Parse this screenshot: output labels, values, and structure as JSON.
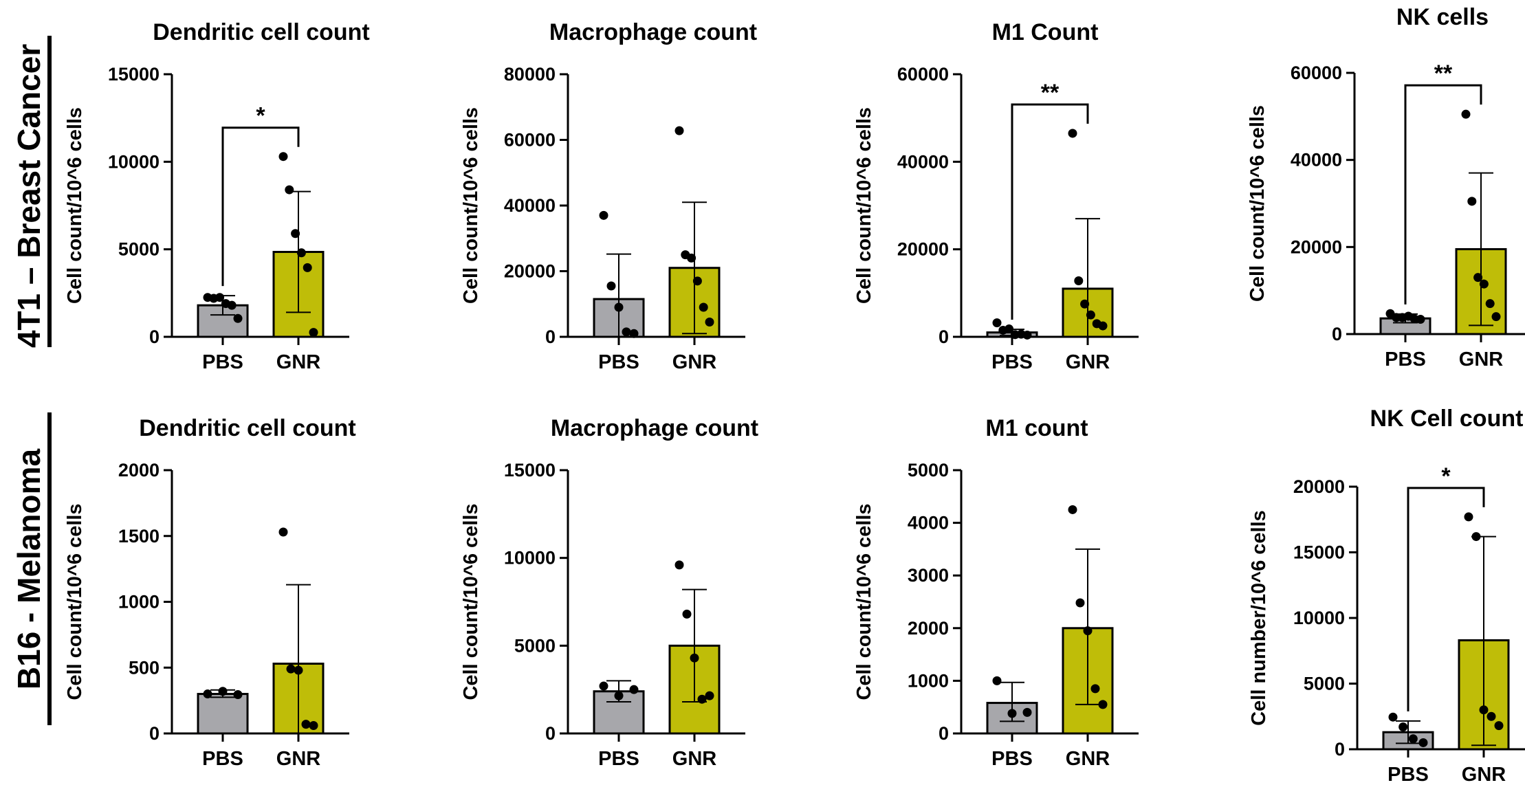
{
  "colors": {
    "pbs_bar": "#a7a7ab",
    "gnr_bar": "#bfbd08",
    "axis": "#000000",
    "points": "#000000"
  },
  "row_labels": [
    "4T1 – Breast Cancer",
    "B16 - Melanoma"
  ],
  "chart_data": [
    {
      "type": "bar",
      "title": "Dendritic cell count",
      "xlabel": "",
      "ylabel": "Cell count/10^6 cells",
      "ylim": [
        0,
        15000
      ],
      "yticks": [
        "0",
        "5000",
        "10000",
        "15000"
      ],
      "categories": [
        "PBS",
        "GNR"
      ],
      "values": [
        1800,
        4850
      ],
      "error": [
        [
          1250,
          2350
        ],
        [
          1400,
          8300
        ]
      ],
      "points": [
        [
          2250,
          2200,
          2250,
          1900,
          1800,
          1050
        ],
        [
          10300,
          8400,
          5900,
          4800,
          3950,
          250
        ]
      ],
      "significance": "*"
    },
    {
      "type": "bar",
      "title": "Macrophage count",
      "xlabel": "",
      "ylabel": "Cell count/10^6 cells",
      "ylim": [
        0,
        80000
      ],
      "yticks": [
        "0",
        "20000",
        "40000",
        "60000",
        "80000"
      ],
      "categories": [
        "PBS",
        "GNR"
      ],
      "values": [
        11500,
        21000
      ],
      "error": [
        [
          0,
          25200
        ],
        [
          1000,
          41000
        ]
      ],
      "points": [
        [
          37000,
          15500,
          9000,
          1500,
          1000
        ],
        [
          62800,
          25000,
          24000,
          17000,
          9000,
          4500
        ]
      ],
      "significance": ""
    },
    {
      "type": "bar",
      "title": "M1 Count",
      "xlabel": "",
      "ylabel": "Cell count/10^6 cells",
      "ylim": [
        0,
        60000
      ],
      "yticks": [
        "0",
        "20000",
        "40000",
        "60000"
      ],
      "categories": [
        "PBS",
        "GNR"
      ],
      "values": [
        1000,
        11000
      ],
      "error": [
        [
          300,
          1700
        ],
        [
          0,
          27000
        ]
      ],
      "points": [
        [
          3200,
          1500,
          1800,
          500,
          600,
          400
        ],
        [
          46500,
          12800,
          7500,
          5000,
          3000,
          2500
        ]
      ],
      "significance": "**"
    },
    {
      "type": "bar",
      "title": "NK cells",
      "xlabel": "",
      "ylabel": "Cell count/10^6 cells",
      "ylim": [
        0,
        60000
      ],
      "yticks": [
        "0",
        "20000",
        "40000",
        "60000"
      ],
      "categories": [
        "PBS",
        "GNR"
      ],
      "values": [
        3600,
        19500
      ],
      "error": [
        [
          2600,
          4600
        ],
        [
          2000,
          37000
        ]
      ],
      "points": [
        [
          4700,
          3800,
          3800,
          4100,
          3500,
          3400
        ],
        [
          50500,
          30500,
          13000,
          11500,
          7000,
          4000
        ]
      ],
      "significance": "**"
    },
    {
      "type": "bar",
      "title": "Dendritic cell count",
      "xlabel": "",
      "ylabel": "Cell count/10^6 cells",
      "ylim": [
        0,
        2000
      ],
      "yticks": [
        "0",
        "500",
        "1000",
        "1500",
        "2000"
      ],
      "categories": [
        "PBS",
        "GNR"
      ],
      "values": [
        300,
        530
      ],
      "error": [
        [
          275,
          330
        ],
        [
          0,
          1130
        ]
      ],
      "points": [
        [
          300,
          320,
          295
        ],
        [
          1530,
          490,
          480,
          70,
          60
        ]
      ],
      "significance": ""
    },
    {
      "type": "bar",
      "title": "Macrophage count",
      "xlabel": "",
      "ylabel": "Cell count/10^6 cells",
      "ylim": [
        0,
        15000
      ],
      "yticks": [
        "0",
        "5000",
        "10000",
        "15000"
      ],
      "categories": [
        "PBS",
        "GNR"
      ],
      "values": [
        2400,
        5000
      ],
      "error": [
        [
          1800,
          3000
        ],
        [
          1800,
          8200
        ]
      ],
      "points": [
        [
          2700,
          2150,
          2500
        ],
        [
          9600,
          6800,
          4300,
          1950,
          2150
        ]
      ],
      "significance": ""
    },
    {
      "type": "bar",
      "title": "M1 count",
      "xlabel": "",
      "ylabel": "Cell count/10^6 cells",
      "ylim": [
        0,
        5000
      ],
      "yticks": [
        "0",
        "1000",
        "2000",
        "3000",
        "4000",
        "5000"
      ],
      "categories": [
        "PBS",
        "GNR"
      ],
      "values": [
        580,
        2000
      ],
      "error": [
        [
          230,
          970
        ],
        [
          550,
          3500
        ]
      ],
      "points": [
        [
          1000,
          380,
          400
        ],
        [
          4250,
          2480,
          1950,
          850,
          550
        ]
      ],
      "significance": ""
    },
    {
      "type": "bar",
      "title": "NK Cell count",
      "xlabel": "",
      "ylabel": "Cell number/10^6 cells",
      "ylim": [
        0,
        20000
      ],
      "yticks": [
        "0",
        "5000",
        "10000",
        "15000",
        "20000"
      ],
      "categories": [
        "PBS",
        "GNR"
      ],
      "values": [
        1300,
        8300
      ],
      "error": [
        [
          450,
          2150
        ],
        [
          300,
          16200
        ]
      ],
      "points": [
        [
          2450,
          1700,
          800,
          500
        ],
        [
          17700,
          16200,
          3000,
          2500,
          1800
        ]
      ],
      "significance": "*"
    }
  ]
}
